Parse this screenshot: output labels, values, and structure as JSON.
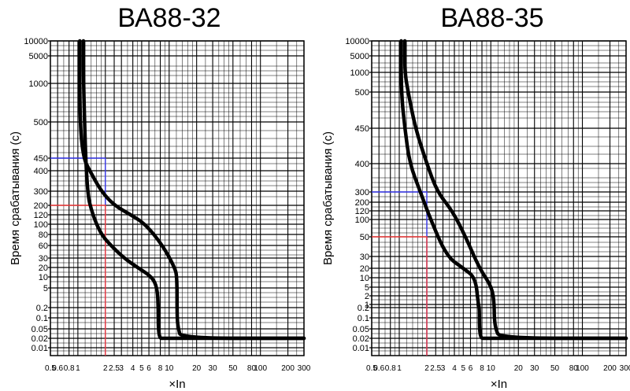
{
  "chart_data": [
    {
      "type": "line",
      "title": "ВА88-32",
      "ylabel": "Время срабатывания (с)",
      "xlabel": "×In",
      "x_scale": "log",
      "xlim": [
        0.5,
        300
      ],
      "x_ticks": [
        "0.5",
        "0.6",
        "0.8",
        "1",
        "2",
        "2.5",
        "3",
        "4",
        "5",
        "6",
        "8",
        "10",
        "20",
        "30",
        "50",
        "80",
        "100",
        "200",
        "300"
      ],
      "y_ticks": [
        "10000",
        "5000",
        "1000",
        "500",
        "450",
        "400",
        "300",
        "200",
        "120",
        "100",
        "80",
        "60",
        "30",
        "20",
        "10",
        "5",
        "0.2",
        "0.1",
        "0.05",
        "0.02",
        "0.01"
      ],
      "series": [
        {
          "x": [
            1.15,
            1.15,
            1.25,
            1.45,
            1.8,
            2.3,
            3.2,
            4.5,
            6.5,
            7.4,
            7.6,
            7.6,
            7.9,
            8.5,
            300
          ],
          "y": [
            "10000",
            "1000",
            "300",
            "120",
            "80",
            "60",
            "30",
            "20",
            "10",
            "5",
            "0.2",
            "0.05",
            "0.02",
            "0.02",
            "0.02"
          ]
        },
        {
          "x": [
            1.05,
            1.05,
            1.15,
            1.35,
            1.8,
            2.5,
            3.8,
            5.5,
            8.5,
            11.5,
            12.2,
            12.2,
            12.6,
            13.5,
            300
          ],
          "y": [
            "10000",
            "500",
            "450",
            "400",
            "300",
            "200",
            "120",
            "100",
            "60",
            "20",
            "10",
            "0.1",
            "0.05",
            "0.02",
            "0.02"
          ]
        }
      ],
      "markers": [
        {
          "x": 2,
          "y": "450",
          "color": "#3b3bf0"
        },
        {
          "x": 2,
          "y": "200",
          "color": "#f03b3b"
        }
      ]
    },
    {
      "type": "line",
      "title": "ВА88-35",
      "ylabel": "Время срабатывания (с)",
      "xlabel": "×In",
      "x_scale": "log",
      "xlim": [
        0.5,
        300
      ],
      "x_ticks": [
        "0.5",
        "0.6",
        "0.8",
        "1",
        "2",
        "2.5",
        "3",
        "4",
        "5",
        "6",
        "8",
        "10",
        "20",
        "30",
        "50",
        "80",
        "100",
        "200",
        "300"
      ],
      "y_ticks": [
        "10000",
        "5000",
        "1000",
        "500",
        "450",
        "400",
        "300",
        "200",
        "120",
        "100",
        "50",
        "30",
        "20",
        "10",
        "5",
        "2",
        "1",
        "0.2",
        "0.1",
        "0.05",
        "0.02",
        "0.01"
      ],
      "series": [
        {
          "x": [
            1.05,
            1.05,
            1.15,
            1.3,
            1.7,
            2.2,
            3.3,
            5,
            6.8,
            7.3,
            7.5,
            7.5,
            7.8,
            8.5,
            300
          ],
          "y": [
            "10000",
            "500",
            "450",
            "400",
            "300",
            "100",
            "30",
            "20",
            "10",
            "1",
            "0.2",
            "0.05",
            "0.02",
            "0.02",
            "0.02"
          ]
        },
        {
          "x": [
            1.15,
            1.15,
            1.25,
            1.5,
            2,
            2.6,
            3.8,
            5.3,
            7.5,
            10.3,
            10.9,
            10.9,
            11.3,
            12.5,
            300
          ],
          "y": [
            "10000",
            "1000",
            "500",
            "450",
            "400",
            "300",
            "120",
            "50",
            "20",
            "5",
            "1",
            "0.1",
            "0.05",
            "0.02",
            "0.02"
          ]
        }
      ],
      "markers": [
        {
          "x": 2,
          "y": "300",
          "color": "#3b3bf0"
        },
        {
          "x": 2,
          "y": "50",
          "color": "#f03b3b"
        }
      ]
    }
  ],
  "style": {
    "grid_color": "#000000",
    "curve_color": "#000000",
    "marker_blue": "#3b3bf0",
    "marker_red": "#f03b3b"
  }
}
